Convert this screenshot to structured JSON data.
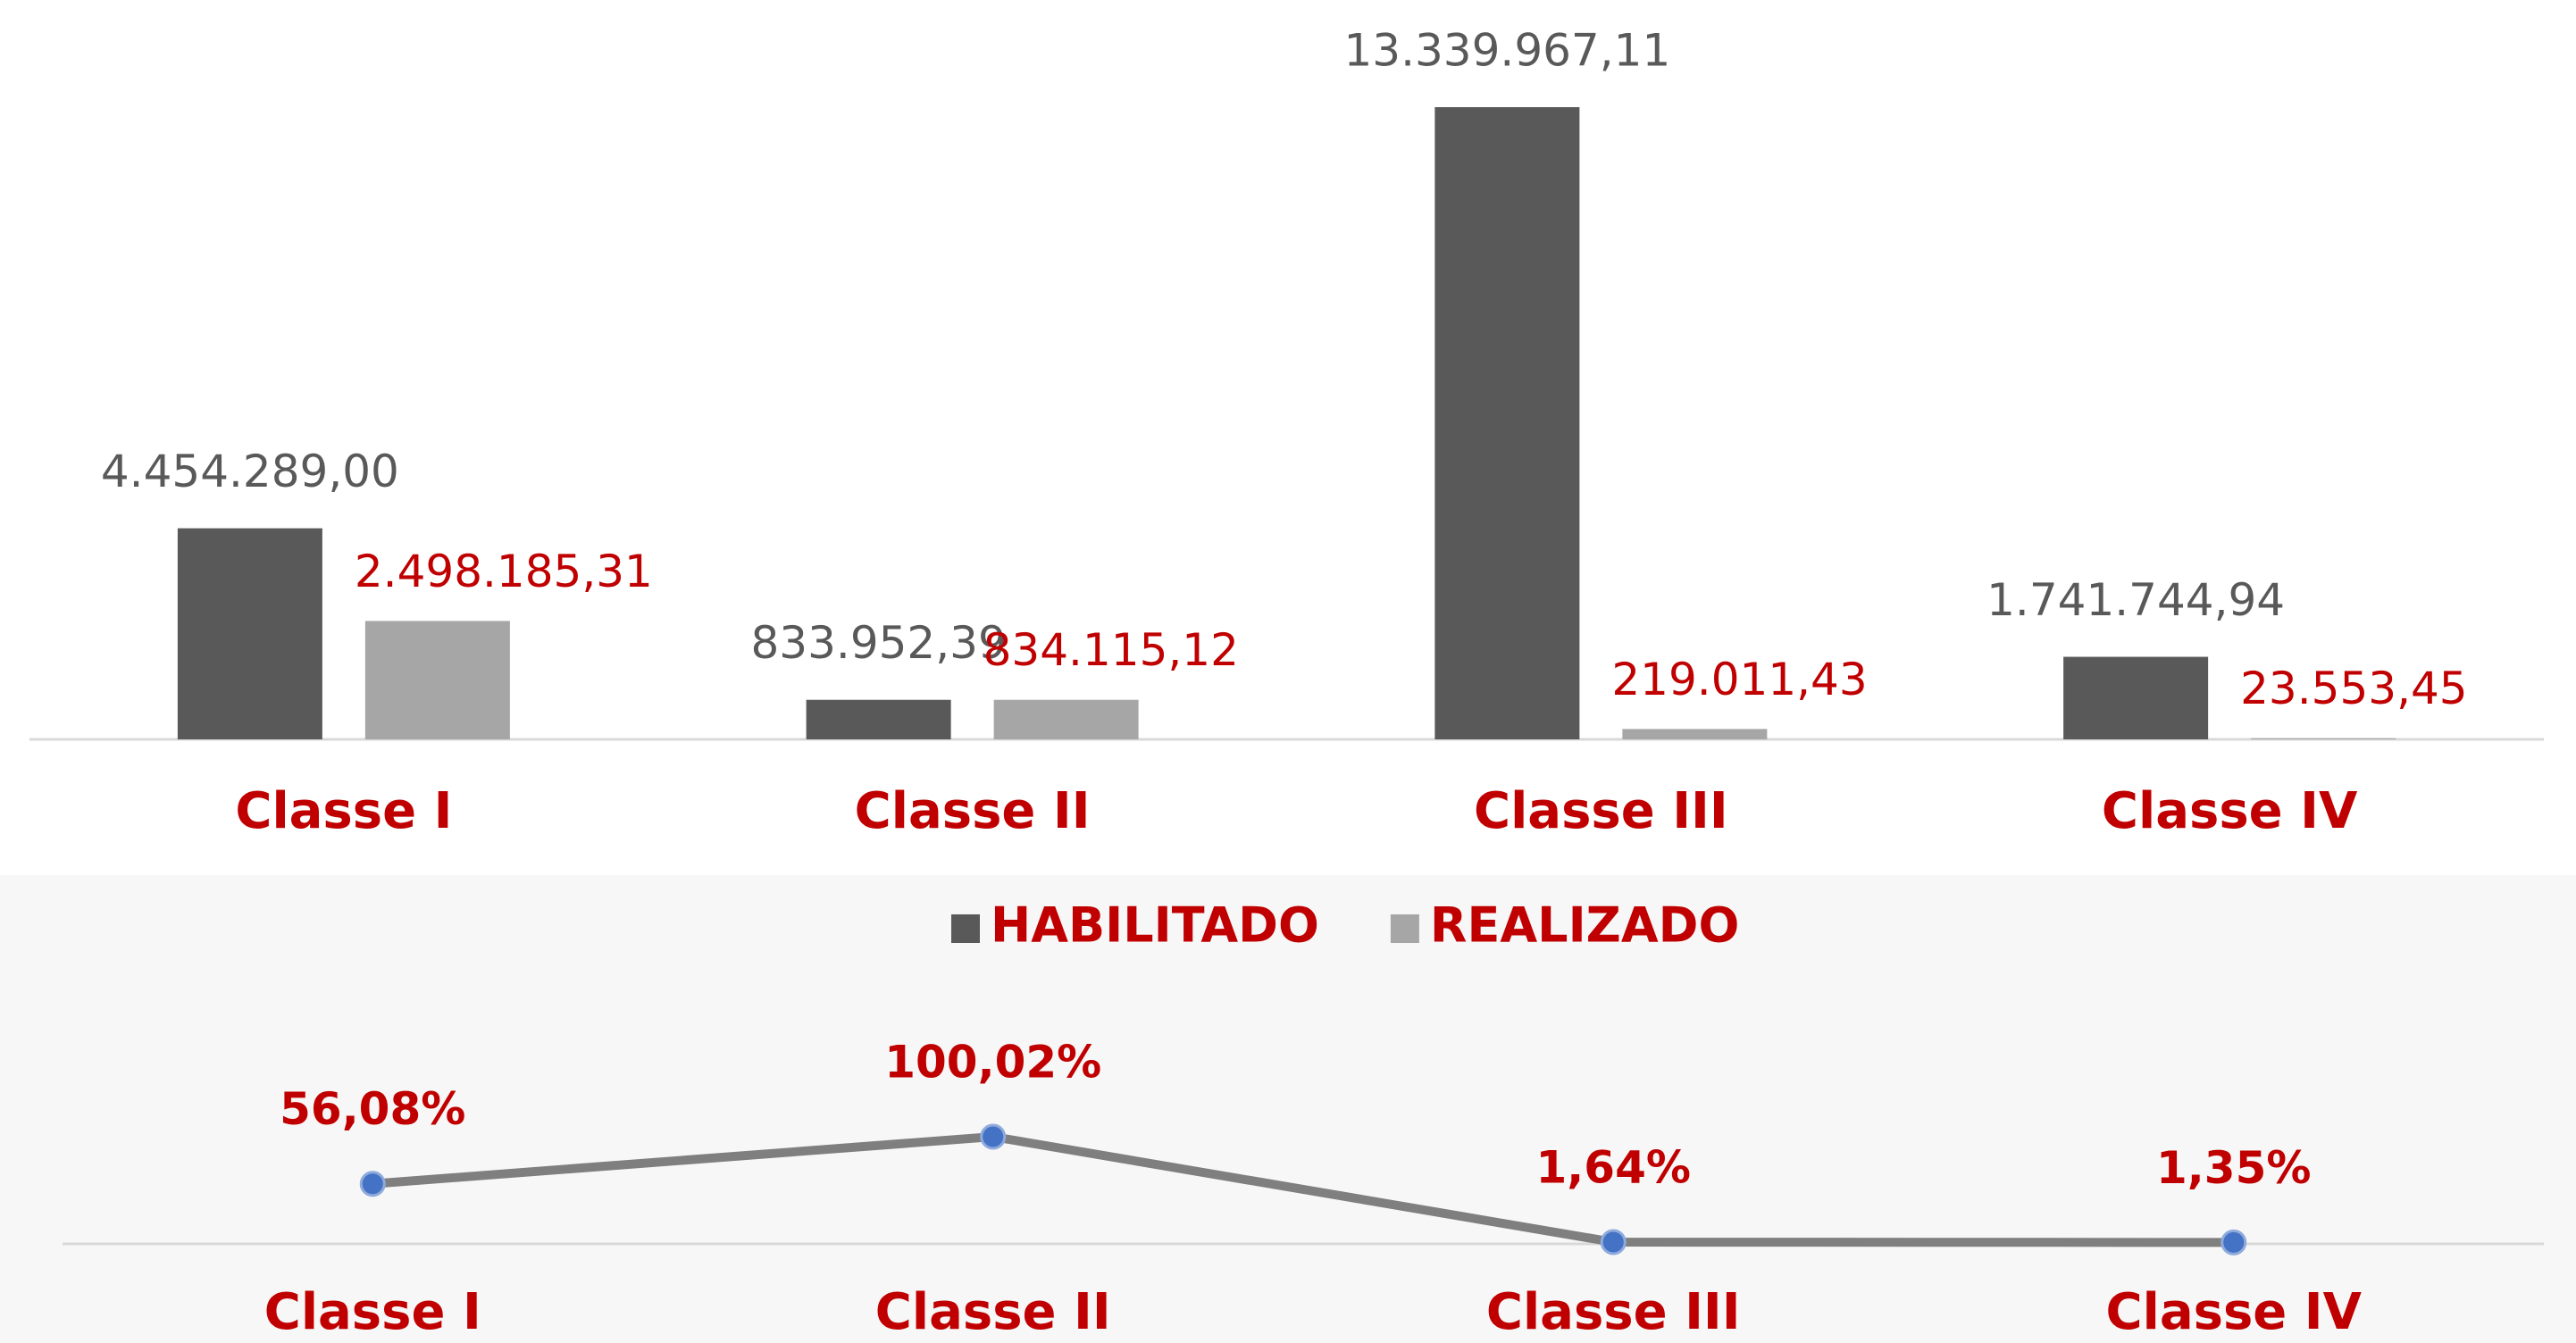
{
  "chart_data": [
    {
      "type": "bar",
      "categories": [
        "Classe I",
        "Classe II",
        "Classe III",
        "Classe IV"
      ],
      "series": [
        {
          "name": "HABILITADO",
          "color": "#595959",
          "values": [
            4454289.0,
            833952.39,
            13339967.11,
            1741744.94
          ],
          "value_labels": [
            "4.454.289,00",
            "833.952,39",
            "13.339.967,11",
            "1.741.744,94"
          ]
        },
        {
          "name": "REALIZADO",
          "color": "#a6a6a6",
          "values": [
            2498185.31,
            834115.12,
            219011.43,
            23553.45
          ],
          "value_labels": [
            "2.498.185,31",
            "834.115,12",
            "219.011,43",
            "23.553,45"
          ]
        }
      ],
      "legend": "bottom"
    },
    {
      "type": "line",
      "categories": [
        "Classe I",
        "Classe II",
        "Classe III",
        "Classe IV"
      ],
      "series": [
        {
          "color": "#7f7f7f",
          "values": [
            56.08,
            100.02,
            1.64,
            1.35
          ],
          "value_labels": [
            "56,08%",
            "100,02%",
            "1,64%",
            "1,35%"
          ]
        }
      ]
    }
  ]
}
